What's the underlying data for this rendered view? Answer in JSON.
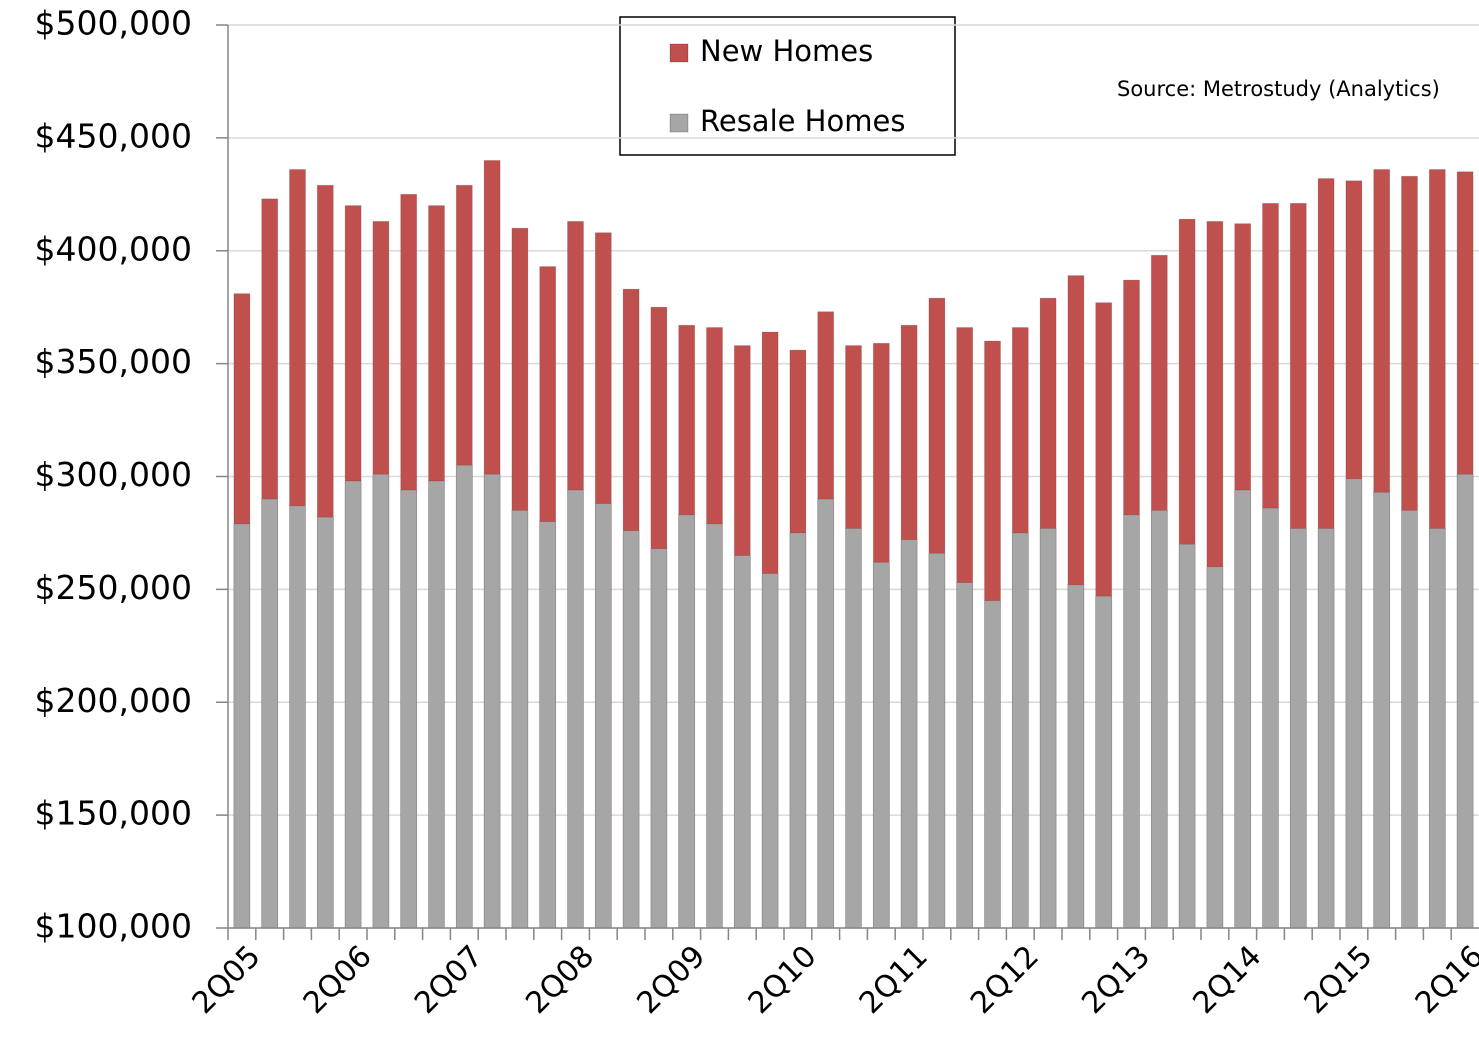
{
  "chart_data": {
    "type": "bar",
    "barmode": "overlay",
    "annotation": "Source: Metrostudy (Analytics)",
    "categories": [
      "2Q05",
      null,
      null,
      null,
      "2Q06",
      null,
      null,
      null,
      "2Q07",
      null,
      null,
      null,
      "2Q08",
      null,
      null,
      null,
      "2Q09",
      null,
      null,
      null,
      "2Q10",
      null,
      null,
      null,
      "2Q11",
      null,
      null,
      null,
      "2Q12",
      null,
      null,
      null,
      "2Q13",
      null,
      null,
      null,
      "2Q14",
      null,
      null,
      null,
      "2Q15",
      null,
      null,
      null,
      "2Q16"
    ],
    "series": [
      {
        "name": "New Homes",
        "color": "#c0504d",
        "values": [
          381000,
          423000,
          436000,
          429000,
          420000,
          413000,
          425000,
          420000,
          429000,
          440000,
          410000,
          393000,
          413000,
          408000,
          383000,
          375000,
          367000,
          366000,
          358000,
          364000,
          356000,
          373000,
          358000,
          359000,
          367000,
          379000,
          366000,
          360000,
          366000,
          379000,
          389000,
          377000,
          387000,
          398000,
          414000,
          413000,
          412000,
          421000,
          421000,
          432000,
          431000,
          436000,
          433000,
          436000,
          435000
        ]
      },
      {
        "name": "Resale Homes",
        "color": "#a6a6a6",
        "values": [
          279000,
          290000,
          287000,
          282000,
          298000,
          301000,
          294000,
          298000,
          305000,
          301000,
          285000,
          280000,
          294000,
          288000,
          276000,
          268000,
          283000,
          279000,
          265000,
          257000,
          275000,
          290000,
          277000,
          262000,
          272000,
          266000,
          253000,
          245000,
          275000,
          277000,
          252000,
          247000,
          283000,
          285000,
          270000,
          260000,
          294000,
          286000,
          277000,
          277000,
          299000,
          293000,
          285000,
          277000,
          301000
        ]
      }
    ],
    "ylim": [
      100000,
      500000
    ],
    "yticks": [
      {
        "value": 100000,
        "label": "$100,000"
      },
      {
        "value": 150000,
        "label": "$150,000"
      },
      {
        "value": 200000,
        "label": "$200,000"
      },
      {
        "value": 250000,
        "label": "$250,000"
      },
      {
        "value": 300000,
        "label": "$300,000"
      },
      {
        "value": 350000,
        "label": "$350,000"
      },
      {
        "value": 400000,
        "label": "$400,000"
      },
      {
        "value": 450000,
        "label": "$450,000"
      },
      {
        "value": 500000,
        "label": "$500,000"
      }
    ],
    "grid": true,
    "legend": "top"
  }
}
